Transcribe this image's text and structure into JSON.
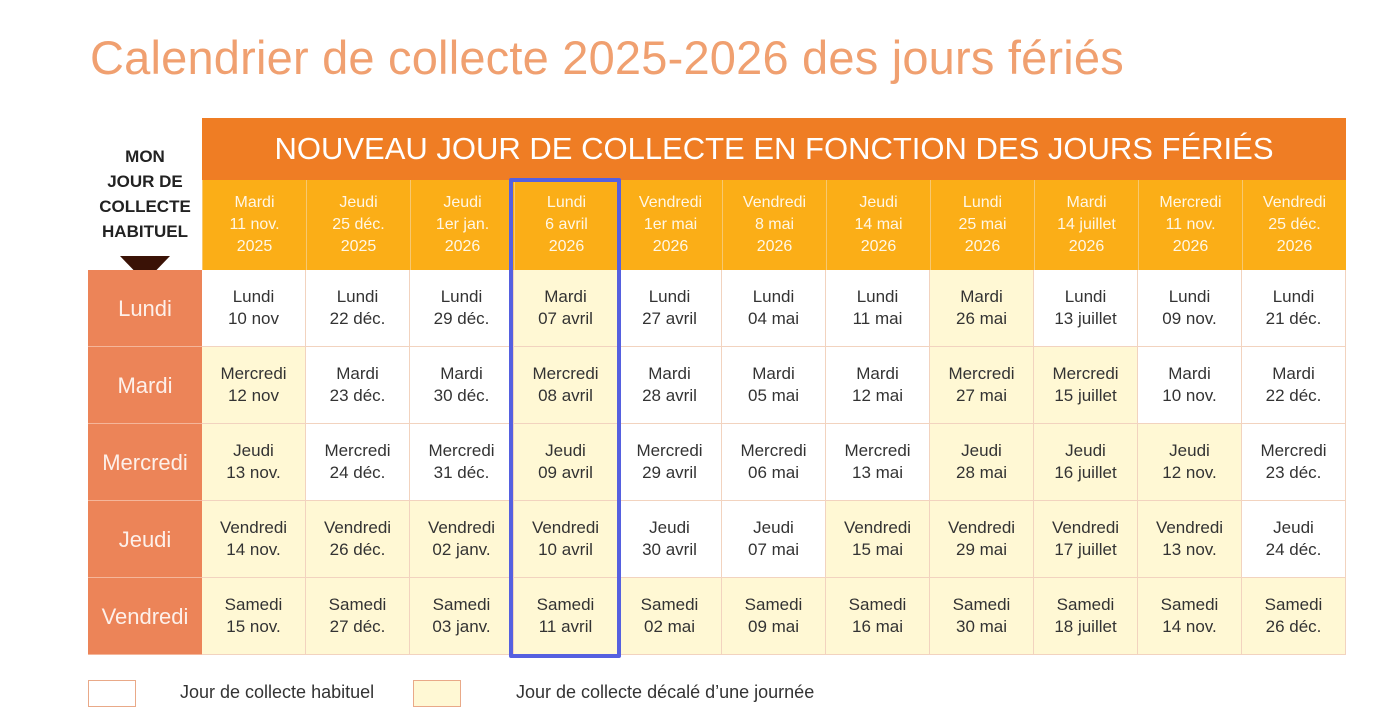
{
  "title": "Calendrier de collecte 2025-2026 des jours fériés",
  "corner": {
    "lines": [
      "MON",
      "JOUR DE",
      "COLLECTE",
      "HABITUEL"
    ]
  },
  "banner": "NOUVEAU JOUR DE COLLECTE EN FONCTION DES JOURS FÉRIÉS",
  "holidays": [
    {
      "day": "Mardi",
      "date": "11 nov.",
      "year": "2025"
    },
    {
      "day": "Jeudi",
      "date": "25 déc.",
      "year": "2025"
    },
    {
      "day": "Jeudi",
      "date": "1er jan.",
      "year": "2026"
    },
    {
      "day": "Lundi",
      "date": "6 avril",
      "year": "2026"
    },
    {
      "day": "Vendredi",
      "date": "1er mai",
      "year": "2026"
    },
    {
      "day": "Vendredi",
      "date": "8 mai",
      "year": "2026"
    },
    {
      "day": "Jeudi",
      "date": "14 mai",
      "year": "2026"
    },
    {
      "day": "Lundi",
      "date": "25 mai",
      "year": "2026"
    },
    {
      "day": "Mardi",
      "date": "14 juillet",
      "year": "2026"
    },
    {
      "day": "Mercredi",
      "date": "11 nov.",
      "year": "2026"
    },
    {
      "day": "Vendredi",
      "date": "25 déc.",
      "year": "2026"
    }
  ],
  "rows": [
    {
      "label": "Lundi",
      "cells": [
        {
          "day": "Lundi",
          "date": "10 nov",
          "shifted": false
        },
        {
          "day": "Lundi",
          "date": "22 déc.",
          "shifted": false
        },
        {
          "day": "Lundi",
          "date": "29 déc.",
          "shifted": false
        },
        {
          "day": "Mardi",
          "date": "07 avril",
          "shifted": true
        },
        {
          "day": "Lundi",
          "date": "27 avril",
          "shifted": false
        },
        {
          "day": "Lundi",
          "date": "04 mai",
          "shifted": false
        },
        {
          "day": "Lundi",
          "date": "11 mai",
          "shifted": false
        },
        {
          "day": "Mardi",
          "date": "26 mai",
          "shifted": true
        },
        {
          "day": "Lundi",
          "date": "13 juillet",
          "shifted": false
        },
        {
          "day": "Lundi",
          "date": "09 nov.",
          "shifted": false
        },
        {
          "day": "Lundi",
          "date": "21 déc.",
          "shifted": false
        }
      ]
    },
    {
      "label": "Mardi",
      "cells": [
        {
          "day": "Mercredi",
          "date": "12 nov",
          "shifted": true
        },
        {
          "day": "Mardi",
          "date": "23 déc.",
          "shifted": false
        },
        {
          "day": "Mardi",
          "date": "30 déc.",
          "shifted": false
        },
        {
          "day": "Mercredi",
          "date": "08 avril",
          "shifted": true
        },
        {
          "day": "Mardi",
          "date": "28 avril",
          "shifted": false
        },
        {
          "day": "Mardi",
          "date": "05 mai",
          "shifted": false
        },
        {
          "day": "Mardi",
          "date": "12 mai",
          "shifted": false
        },
        {
          "day": "Mercredi",
          "date": "27 mai",
          "shifted": true
        },
        {
          "day": "Mercredi",
          "date": "15 juillet",
          "shifted": true
        },
        {
          "day": "Mardi",
          "date": "10 nov.",
          "shifted": false
        },
        {
          "day": "Mardi",
          "date": "22 déc.",
          "shifted": false
        }
      ]
    },
    {
      "label": "Mercredi",
      "cells": [
        {
          "day": "Jeudi",
          "date": "13 nov.",
          "shifted": true
        },
        {
          "day": "Mercredi",
          "date": "24 déc.",
          "shifted": false
        },
        {
          "day": "Mercredi",
          "date": "31 déc.",
          "shifted": false
        },
        {
          "day": "Jeudi",
          "date": "09 avril",
          "shifted": true
        },
        {
          "day": "Mercredi",
          "date": "29 avril",
          "shifted": false
        },
        {
          "day": "Mercredi",
          "date": "06 mai",
          "shifted": false
        },
        {
          "day": "Mercredi",
          "date": "13 mai",
          "shifted": false
        },
        {
          "day": "Jeudi",
          "date": "28 mai",
          "shifted": true
        },
        {
          "day": "Jeudi",
          "date": "16 juillet",
          "shifted": true
        },
        {
          "day": "Jeudi",
          "date": "12 nov.",
          "shifted": true
        },
        {
          "day": "Mercredi",
          "date": "23 déc.",
          "shifted": false
        }
      ]
    },
    {
      "label": "Jeudi",
      "cells": [
        {
          "day": "Vendredi",
          "date": "14 nov.",
          "shifted": true
        },
        {
          "day": "Vendredi",
          "date": "26 déc.",
          "shifted": true
        },
        {
          "day": "Vendredi",
          "date": "02 janv.",
          "shifted": true
        },
        {
          "day": "Vendredi",
          "date": "10 avril",
          "shifted": true
        },
        {
          "day": "Jeudi",
          "date": "30 avril",
          "shifted": false
        },
        {
          "day": "Jeudi",
          "date": "07 mai",
          "shifted": false
        },
        {
          "day": "Vendredi",
          "date": "15 mai",
          "shifted": true
        },
        {
          "day": "Vendredi",
          "date": "29 mai",
          "shifted": true
        },
        {
          "day": "Vendredi",
          "date": "17 juillet",
          "shifted": true
        },
        {
          "day": "Vendredi",
          "date": "13 nov.",
          "shifted": true
        },
        {
          "day": "Jeudi",
          "date": "24 déc.",
          "shifted": false
        }
      ]
    },
    {
      "label": "Vendredi",
      "cells": [
        {
          "day": "Samedi",
          "date": "15 nov.",
          "shifted": true
        },
        {
          "day": "Samedi",
          "date": "27 déc.",
          "shifted": true
        },
        {
          "day": "Samedi",
          "date": "03 janv.",
          "shifted": true
        },
        {
          "day": "Samedi",
          "date": "11 avril",
          "shifted": true
        },
        {
          "day": "Samedi",
          "date": "02 mai",
          "shifted": true
        },
        {
          "day": "Samedi",
          "date": "09 mai",
          "shifted": true
        },
        {
          "day": "Samedi",
          "date": "16 mai",
          "shifted": true
        },
        {
          "day": "Samedi",
          "date": "30 mai",
          "shifted": true
        },
        {
          "day": "Samedi",
          "date": "18 juillet",
          "shifted": true
        },
        {
          "day": "Samedi",
          "date": "14 nov.",
          "shifted": true
        },
        {
          "day": "Samedi",
          "date": "26 déc.",
          "shifted": true
        }
      ]
    }
  ],
  "legend": {
    "usual": "Jour de collecte habituel",
    "shifted": "Jour de collecte décalé d’une journée"
  },
  "colors": {
    "banner": "#ef7d24",
    "holiday_header": "#fbae17",
    "row_label": "#ec8458",
    "shifted_cell": "#fff8d4",
    "highlight_frame": "#5560e0"
  }
}
